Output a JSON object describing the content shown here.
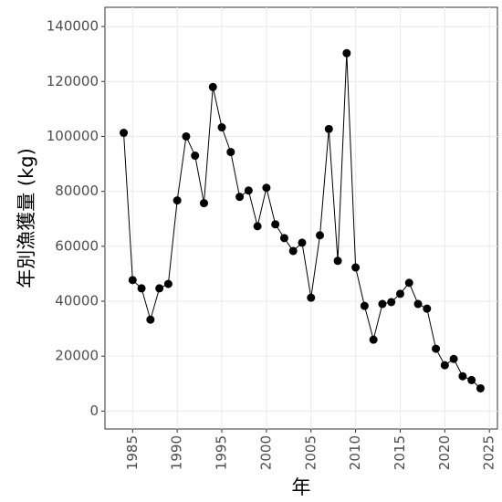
{
  "chart_data": {
    "type": "line",
    "x_label": "年",
    "y_label": "年別漁獲量 (kg)",
    "x": [
      1984,
      1985,
      1986,
      1987,
      1988,
      1989,
      1990,
      1991,
      1992,
      1993,
      1994,
      1995,
      1996,
      1997,
      1998,
      1999,
      2000,
      2001,
      2002,
      2003,
      2004,
      2005,
      2006,
      2007,
      2008,
      2009,
      2010,
      2011,
      2012,
      2013,
      2014,
      2015,
      2016,
      2017,
      2018,
      2019,
      2020,
      2021,
      2022,
      2023,
      2024
    ],
    "values": [
      101300,
      47700,
      44700,
      33300,
      44700,
      46300,
      76700,
      100000,
      93000,
      75700,
      118000,
      103300,
      94300,
      78000,
      80300,
      67300,
      81300,
      68000,
      63000,
      58300,
      61300,
      41300,
      64000,
      102700,
      54700,
      130300,
      52300,
      38300,
      26000,
      39000,
      39700,
      42700,
      46700,
      39000,
      37300,
      22700,
      16700,
      19000,
      12700,
      11300,
      8300
    ],
    "color": "#000000",
    "xlim": [
      1981.9,
      2025.9
    ],
    "xticks": [
      1985,
      1990,
      1995,
      2000,
      2005,
      2010,
      2015,
      2020,
      2025
    ],
    "ylim": [
      -6500,
      147000
    ],
    "yticks": [
      0,
      20000,
      40000,
      60000,
      80000,
      100000,
      120000,
      140000
    ],
    "grid": true
  }
}
